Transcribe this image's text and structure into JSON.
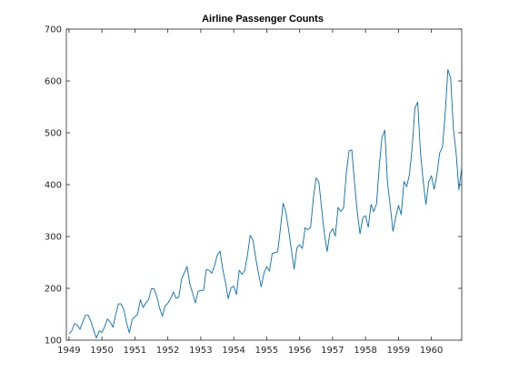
{
  "chart_data": {
    "type": "line",
    "title": "Airline Passenger Counts",
    "xlabel": "",
    "ylabel": "",
    "xlim": [
      1948.92,
      1960.92
    ],
    "ylim": [
      100,
      700
    ],
    "grid": false,
    "x_ticks": [
      1949,
      1950,
      1951,
      1952,
      1953,
      1954,
      1955,
      1956,
      1957,
      1958,
      1959,
      1960
    ],
    "x_tick_labels": [
      "1949",
      "1950",
      "1951",
      "1952",
      "1953",
      "1954",
      "1955",
      "1956",
      "1957",
      "1958",
      "1959",
      "1960"
    ],
    "y_ticks": [
      100,
      200,
      300,
      400,
      500,
      600,
      700
    ],
    "y_tick_labels": [
      "100",
      "200",
      "300",
      "400",
      "500",
      "600",
      "700"
    ],
    "x_start": 1949.0,
    "x_step": 0.0833333,
    "series": [
      {
        "color": "#0072BD",
        "values": [
          112,
          118,
          132,
          129,
          121,
          135,
          148,
          148,
          136,
          119,
          104,
          118,
          115,
          126,
          141,
          135,
          125,
          149,
          170,
          170,
          158,
          133,
          114,
          140,
          145,
          150,
          178,
          163,
          172,
          178,
          199,
          199,
          184,
          162,
          146,
          166,
          171,
          180,
          193,
          181,
          183,
          218,
          230,
          242,
          209,
          191,
          172,
          194,
          196,
          196,
          236,
          235,
          229,
          243,
          264,
          272,
          237,
          211,
          180,
          201,
          204,
          188,
          235,
          227,
          234,
          264,
          302,
          293,
          259,
          229,
          203,
          229,
          242,
          233,
          267,
          269,
          270,
          315,
          364,
          347,
          312,
          274,
          237,
          278,
          284,
          277,
          317,
          313,
          318,
          374,
          413,
          405,
          355,
          306,
          271,
          306,
          315,
          301,
          356,
          348,
          355,
          422,
          465,
          467,
          404,
          347,
          305,
          336,
          340,
          318,
          362,
          348,
          363,
          435,
          491,
          505,
          404,
          359,
          310,
          337,
          360,
          342,
          406,
          396,
          420,
          472,
          548,
          559,
          463,
          407,
          362,
          405,
          417,
          391,
          419,
          461,
          472,
          535,
          622,
          606,
          508,
          461,
          390,
          432
        ]
      }
    ]
  }
}
